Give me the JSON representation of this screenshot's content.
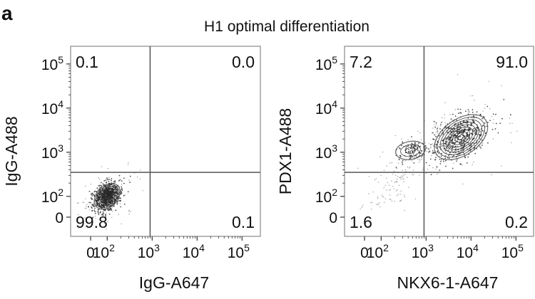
{
  "panel_label": "a",
  "title": "H1 optimal differentiation",
  "chart_data": [
    {
      "type": "scatter",
      "subtype": "flow-cytometry-contour",
      "xlabel": "IgG-A647",
      "ylabel": "IgG-A488",
      "x_ticks": [
        {
          "value": 0,
          "base": "0",
          "exp": ""
        },
        {
          "value": 100,
          "base": "10",
          "exp": "2"
        },
        {
          "value": 1000,
          "base": "10",
          "exp": "3"
        },
        {
          "value": 10000,
          "base": "10",
          "exp": "4"
        },
        {
          "value": 100000,
          "base": "10",
          "exp": "5"
        }
      ],
      "y_ticks": [
        {
          "value": 0,
          "base": "0",
          "exp": ""
        },
        {
          "value": 100,
          "base": "10",
          "exp": "2"
        },
        {
          "value": 1000,
          "base": "10",
          "exp": "3"
        },
        {
          "value": 10000,
          "base": "10",
          "exp": "4"
        },
        {
          "value": 100000,
          "base": "10",
          "exp": "5"
        }
      ],
      "scale": "biexponential",
      "gate": {
        "x": 900,
        "y": 350
      },
      "quadrants": {
        "upper_left": "0.1",
        "upper_right": "0.0",
        "lower_left": "99.8",
        "lower_right": "0.1"
      },
      "populations": [
        {
          "x": 100,
          "y": 100,
          "weight": 1.0
        }
      ]
    },
    {
      "type": "scatter",
      "subtype": "flow-cytometry-contour",
      "xlabel": "NKX6-1-A647",
      "ylabel": "PDX1-A488",
      "x_ticks": [
        {
          "value": 0,
          "base": "0",
          "exp": ""
        },
        {
          "value": 100,
          "base": "10",
          "exp": "2"
        },
        {
          "value": 1000,
          "base": "10",
          "exp": "3"
        },
        {
          "value": 10000,
          "base": "10",
          "exp": "4"
        },
        {
          "value": 100000,
          "base": "10",
          "exp": "5"
        }
      ],
      "y_ticks": [
        {
          "value": 0,
          "base": "0",
          "exp": ""
        },
        {
          "value": 100,
          "base": "10",
          "exp": "2"
        },
        {
          "value": 1000,
          "base": "10",
          "exp": "3"
        },
        {
          "value": 10000,
          "base": "10",
          "exp": "4"
        },
        {
          "value": 100000,
          "base": "10",
          "exp": "5"
        }
      ],
      "scale": "biexponential",
      "gate": {
        "x": 900,
        "y": 350
      },
      "quadrants": {
        "upper_left": "7.2",
        "upper_right": "91.0",
        "lower_left": "1.6",
        "lower_right": "0.2"
      },
      "populations": [
        {
          "x": 6000,
          "y": 2200,
          "weight": 0.85
        },
        {
          "x": 450,
          "y": 1100,
          "weight": 0.15
        }
      ]
    }
  ],
  "colors": {
    "contour": "#555555",
    "dots": "#222222",
    "axis": "#333333"
  }
}
